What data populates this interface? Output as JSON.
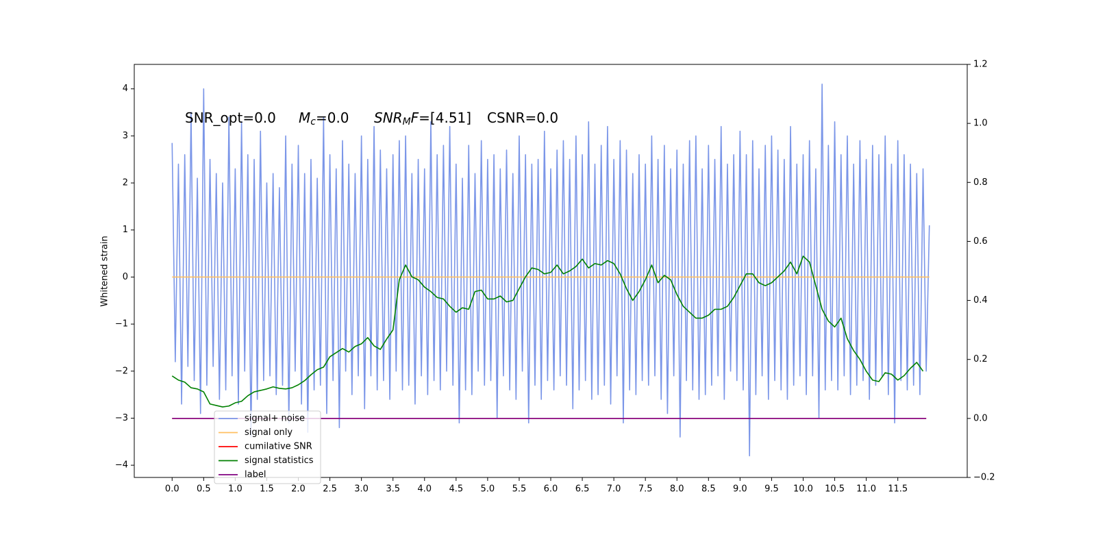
{
  "chart_data": {
    "type": "line",
    "ylabel": "Whitened strain",
    "annotations": [
      [
        {
          "text": "SNR_opt=0.0"
        }
      ],
      [
        {
          "text": "M",
          "style": "italic"
        },
        {
          "text": "c",
          "style": "italic-sub"
        },
        {
          "text": "=0.0"
        }
      ],
      [
        {
          "text": "SNR",
          "style": "italic"
        },
        {
          "text": "M",
          "style": "italic-sub"
        },
        {
          "text": "F",
          "style": "italic"
        },
        {
          "text": "=[4.51]"
        }
      ],
      [
        {
          "text": "CSNR=0.0"
        }
      ]
    ],
    "xlim": [
      -0.6,
      12.6
    ],
    "xticks": [
      {
        "value": 0,
        "label": "0.0"
      },
      0.5,
      {
        "value": 1,
        "label": "1.0"
      },
      1.5,
      {
        "value": 2,
        "label": "2.0"
      },
      2.5,
      {
        "value": 3,
        "label": "3.0"
      },
      3.5,
      {
        "value": 4,
        "label": "4.0"
      },
      4.5,
      {
        "value": 5,
        "label": "5.0"
      },
      5.5,
      {
        "value": 6,
        "label": "6.0"
      },
      6.5,
      {
        "value": 7,
        "label": "7.0"
      },
      7.5,
      {
        "value": 8,
        "label": "8.0"
      },
      8.5,
      {
        "value": 9,
        "label": "9.0"
      },
      9.5,
      {
        "value": 10,
        "label": "10.0"
      },
      10.5,
      {
        "value": 11,
        "label": "11.0"
      },
      11.5
    ],
    "ylim": [
      -4.26,
      4.52
    ],
    "yticks": [
      {
        "value": -4,
        "label": "−4"
      },
      {
        "value": -3,
        "label": "−3"
      },
      {
        "value": -2,
        "label": "−2"
      },
      {
        "value": -1,
        "label": "−1"
      },
      0,
      1,
      2,
      3,
      4
    ],
    "y2lim": [
      -0.2,
      1.2
    ],
    "y2ticks": [
      {
        "value": -0.2,
        "label": "−0.2"
      },
      {
        "value": 0,
        "label": "0.0"
      },
      0.2,
      0.4,
      0.6,
      0.8,
      {
        "value": 1,
        "label": "1.0"
      },
      1.2
    ],
    "grid": false,
    "legend": "lower left",
    "series": [
      {
        "name": "signal+ noise",
        "color": "#7b96e8",
        "x": [
          0,
          0.05,
          0.1,
          0.15,
          0.2,
          0.25,
          0.3,
          0.35,
          0.4,
          0.45,
          0.5,
          0.55,
          0.6,
          0.65,
          0.7,
          0.75,
          0.8,
          0.85,
          0.9,
          0.95,
          1,
          1.05,
          1.1,
          1.15,
          1.2,
          1.25,
          1.3,
          1.35,
          1.4,
          1.45,
          1.5,
          1.55,
          1.6,
          1.65,
          1.7,
          1.75,
          1.8,
          1.85,
          1.9,
          1.95,
          2,
          2.05,
          2.1,
          2.15,
          2.2,
          2.25,
          2.3,
          2.35,
          2.4,
          2.45,
          2.5,
          2.55,
          2.6,
          2.65,
          2.7,
          2.75,
          2.8,
          2.85,
          2.9,
          2.95,
          3,
          3.05,
          3.1,
          3.15,
          3.2,
          3.25,
          3.3,
          3.35,
          3.4,
          3.45,
          3.5,
          3.55,
          3.6,
          3.65,
          3.7,
          3.75,
          3.8,
          3.85,
          3.9,
          3.95,
          4,
          4.05,
          4.1,
          4.15,
          4.2,
          4.25,
          4.3,
          4.35,
          4.4,
          4.45,
          4.5,
          4.55,
          4.6,
          4.65,
          4.7,
          4.75,
          4.8,
          4.85,
          4.9,
          4.95,
          5,
          5.05,
          5.1,
          5.15,
          5.2,
          5.25,
          5.3,
          5.35,
          5.4,
          5.45,
          5.5,
          5.55,
          5.6,
          5.65,
          5.7,
          5.75,
          5.8,
          5.85,
          5.9,
          5.95,
          6,
          6.05,
          6.1,
          6.15,
          6.2,
          6.25,
          6.3,
          6.35,
          6.4,
          6.45,
          6.5,
          6.55,
          6.6,
          6.65,
          6.7,
          6.75,
          6.8,
          6.85,
          6.9,
          6.95,
          7,
          7.05,
          7.1,
          7.15,
          7.2,
          7.25,
          7.3,
          7.35,
          7.4,
          7.45,
          7.5,
          7.55,
          7.6,
          7.65,
          7.7,
          7.75,
          7.8,
          7.85,
          7.9,
          7.95,
          8,
          8.05,
          8.1,
          8.15,
          8.2,
          8.25,
          8.3,
          8.35,
          8.4,
          8.45,
          8.5,
          8.55,
          8.6,
          8.65,
          8.7,
          8.75,
          8.8,
          8.85,
          8.9,
          8.95,
          9,
          9.05,
          9.1,
          9.15,
          9.2,
          9.25,
          9.3,
          9.35,
          9.4,
          9.45,
          9.5,
          9.55,
          9.6,
          9.65,
          9.7,
          9.75,
          9.8,
          9.85,
          9.9,
          9.95,
          10,
          10.05,
          10.1,
          10.15,
          10.2,
          10.25,
          10.3,
          10.35,
          10.4,
          10.45,
          10.5,
          10.55,
          10.6,
          10.65,
          10.7,
          10.75,
          10.8,
          10.85,
          10.9,
          10.95,
          11,
          11.05,
          11.1,
          11.15,
          11.2,
          11.25,
          11.3,
          11.35,
          11.4,
          11.45,
          11.5,
          11.55,
          11.6,
          11.65,
          11.7,
          11.75,
          11.8,
          11.85,
          11.9,
          11.95,
          12
        ],
        "values": [
          2.85,
          -1.8,
          2.4,
          -2.7,
          2.6,
          -1.9,
          3.5,
          -2.2,
          2.1,
          -2.9,
          4.0,
          -2.3,
          2.5,
          -1.9,
          2.2,
          -2.6,
          2.0,
          -2.4,
          3.4,
          -2.1,
          2.3,
          -2.7,
          3.3,
          -2.0,
          2.6,
          -3.4,
          2.5,
          -2.6,
          3.1,
          -2.2,
          2.0,
          -2.1,
          2.2,
          -2.5,
          1.9,
          -2.3,
          3.0,
          -3.1,
          2.4,
          -2.0,
          2.8,
          -2.7,
          2.2,
          -3.3,
          2.5,
          -2.4,
          2.1,
          -2.3,
          3.4,
          -2.9,
          2.6,
          -2.2,
          2.3,
          -3.2,
          2.9,
          -2.0,
          2.4,
          -2.5,
          2.2,
          -2.1,
          3.0,
          -2.8,
          2.5,
          -2.1,
          3.2,
          -2.4,
          2.7,
          -2.2,
          2.3,
          -2.6,
          2.6,
          -2.0,
          2.9,
          -2.4,
          3.0,
          -2.3,
          2.2,
          -2.7,
          2.5,
          -2.1,
          2.3,
          -2.5,
          3.3,
          -2.2,
          2.6,
          -2.4,
          2.8,
          -2.0,
          3.2,
          -2.3,
          2.4,
          -3.1,
          2.1,
          -2.4,
          2.8,
          -2.5,
          2.2,
          -2.0,
          2.9,
          -2.3,
          2.5,
          -2.2,
          2.6,
          -3.0,
          2.3,
          -2.1,
          2.7,
          -2.4,
          2.2,
          -2.6,
          3.0,
          -2.0,
          2.6,
          -3.1,
          2.4,
          -2.3,
          2.5,
          -2.6,
          3.1,
          -2.2,
          2.3,
          -2.4,
          2.7,
          -2.1,
          2.9,
          -2.3,
          2.5,
          -2.8,
          3.0,
          -2.4,
          2.6,
          -2.2,
          3.3,
          -2.6,
          2.4,
          -2.5,
          2.8,
          -2.3,
          3.2,
          -2.7,
          2.5,
          -2.1,
          2.9,
          -3.1,
          2.7,
          -2.4,
          2.2,
          -2.5,
          2.6,
          -2.2,
          2.4,
          -2.3,
          3.0,
          -2.1,
          2.5,
          -2.6,
          2.8,
          -2.9,
          2.3,
          -2.1,
          2.7,
          -3.4,
          2.4,
          -2.2,
          2.9,
          -2.4,
          3.0,
          -2.6,
          2.3,
          -2.5,
          2.8,
          -2.3,
          2.5,
          -2.1,
          3.2,
          -2.6,
          2.4,
          -2.0,
          2.6,
          -2.2,
          3.1,
          -2.4,
          2.6,
          -3.8,
          2.9,
          -2.5,
          2.3,
          -2.1,
          2.8,
          -2.6,
          3.0,
          -2.2,
          2.7,
          -2.4,
          2.5,
          -2.6,
          3.2,
          -2.3,
          2.4,
          -2.1,
          2.6,
          -2.5,
          2.9,
          -2.1,
          2.3,
          -3.0,
          4.1,
          -2.4,
          2.8,
          -2.2,
          3.3,
          -2.4,
          2.6,
          -2.1,
          3.0,
          -2.5,
          2.4,
          -2.3,
          2.9,
          -2.2,
          2.5,
          -2.6,
          2.8,
          -2.3,
          2.6,
          -2.1,
          3.0,
          -2.5,
          2.4,
          -3.1,
          2.9,
          -2.2,
          2.6,
          -2.4,
          2.4,
          -2.3,
          2.2,
          -2.5,
          2.3,
          -2.0,
          1.1
        ]
      },
      {
        "name": "signal only",
        "color": "#ffbf60",
        "x": [
          0,
          12
        ],
        "values": [
          0,
          0
        ]
      },
      {
        "name": "cumilative SNR",
        "color": "#ff0000",
        "axis": "y2",
        "x": [
          0,
          11.95
        ],
        "values": [
          0,
          0
        ]
      },
      {
        "name": "signal statistics",
        "color": "#008000",
        "axis": "y2",
        "x": [
          0,
          0.1,
          0.2,
          0.3,
          0.4,
          0.5,
          0.6,
          0.7,
          0.8,
          0.9,
          1,
          1.1,
          1.2,
          1.3,
          1.4,
          1.5,
          1.6,
          1.7,
          1.8,
          1.9,
          2,
          2.1,
          2.2,
          2.3,
          2.4,
          2.5,
          2.6,
          2.7,
          2.8,
          2.9,
          3,
          3.1,
          3.2,
          3.3,
          3.4,
          3.5,
          3.6,
          3.7,
          3.8,
          3.9,
          4,
          4.1,
          4.2,
          4.3,
          4.4,
          4.5,
          4.6,
          4.7,
          4.8,
          4.9,
          5,
          5.1,
          5.2,
          5.3,
          5.4,
          5.5,
          5.6,
          5.7,
          5.8,
          5.9,
          6,
          6.1,
          6.2,
          6.3,
          6.4,
          6.5,
          6.6,
          6.7,
          6.8,
          6.9,
          7,
          7.1,
          7.2,
          7.3,
          7.4,
          7.5,
          7.6,
          7.7,
          7.8,
          7.9,
          8,
          8.1,
          8.2,
          8.3,
          8.4,
          8.5,
          8.6,
          8.7,
          8.8,
          8.9,
          9,
          9.1,
          9.2,
          9.3,
          9.4,
          9.5,
          9.6,
          9.7,
          9.8,
          9.9,
          10,
          10.1,
          10.2,
          10.3,
          10.4,
          10.5,
          10.6,
          10.7,
          10.8,
          10.9,
          11,
          11.1,
          11.2,
          11.3,
          11.4,
          11.5,
          11.6,
          11.7,
          11.8,
          11.9
        ],
        "values": [
          0.144,
          0.13,
          0.123,
          0.104,
          0.1,
          0.09,
          0.049,
          0.044,
          0.039,
          0.042,
          0.053,
          0.058,
          0.077,
          0.09,
          0.095,
          0.1,
          0.107,
          0.102,
          0.1,
          0.104,
          0.114,
          0.128,
          0.148,
          0.165,
          0.174,
          0.209,
          0.223,
          0.237,
          0.225,
          0.244,
          0.253,
          0.274,
          0.246,
          0.234,
          0.269,
          0.3,
          0.47,
          0.52,
          0.48,
          0.47,
          0.445,
          0.43,
          0.41,
          0.405,
          0.38,
          0.36,
          0.375,
          0.37,
          0.43,
          0.435,
          0.405,
          0.405,
          0.415,
          0.395,
          0.4,
          0.44,
          0.48,
          0.51,
          0.505,
          0.49,
          0.495,
          0.52,
          0.49,
          0.5,
          0.515,
          0.54,
          0.51,
          0.525,
          0.52,
          0.535,
          0.525,
          0.49,
          0.44,
          0.4,
          0.43,
          0.47,
          0.52,
          0.46,
          0.485,
          0.47,
          0.42,
          0.38,
          0.36,
          0.34,
          0.34,
          0.35,
          0.37,
          0.37,
          0.38,
          0.41,
          0.45,
          0.49,
          0.49,
          0.46,
          0.45,
          0.46,
          0.48,
          0.5,
          0.53,
          0.49,
          0.55,
          0.53,
          0.45,
          0.37,
          0.33,
          0.31,
          0.34,
          0.27,
          0.23,
          0.2,
          0.16,
          0.13,
          0.125,
          0.155,
          0.15,
          0.13,
          0.145,
          0.17,
          0.19,
          0.16
        ]
      },
      {
        "name": "label",
        "color": "#800080",
        "axis": "y2",
        "x": [
          0,
          11.95
        ],
        "values": [
          0,
          0
        ]
      }
    ]
  }
}
